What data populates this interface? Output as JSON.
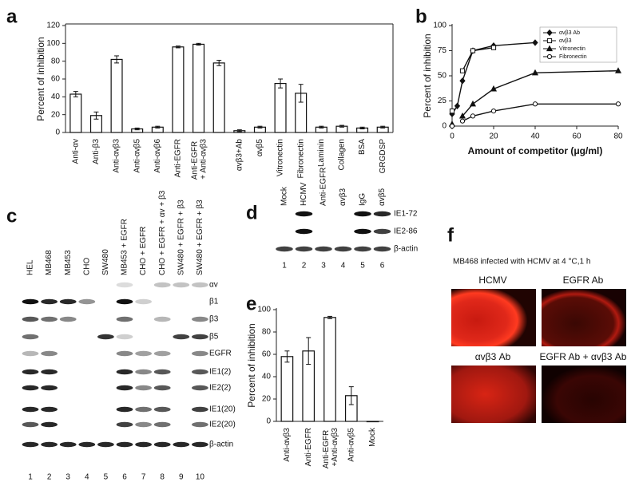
{
  "panel_letters": [
    "a",
    "b",
    "c",
    "d",
    "e",
    "f"
  ],
  "chart_data": [
    {
      "type": "bar",
      "ylabel": "Percent of inhibition",
      "categories": [
        "Anti-αv",
        "Anti-β3",
        "Anti-αvβ3",
        "Anti-αvβ5",
        "Anti-αvβ6",
        "Anti-EGFR",
        "Anti-EGFR + Anti-αvβ3",
        null,
        "αvβ3+Ab",
        "αvβ5",
        "Vitronectin",
        "Fibronectin",
        "Laminin",
        "Collagen",
        "BSA",
        "GRGDSP"
      ],
      "values": [
        43,
        19,
        82,
        4,
        6,
        96,
        99,
        78,
        2,
        6,
        55,
        44,
        6,
        7,
        5,
        6
      ],
      "errors": [
        3,
        4,
        4,
        1,
        1,
        1,
        1,
        3,
        1,
        1,
        5,
        10,
        1,
        1,
        1,
        1
      ],
      "color": "#ffffff",
      "ylim": [
        0,
        120
      ],
      "yticks": [
        0,
        20,
        40,
        60,
        80,
        100,
        120
      ]
    },
    {
      "type": "line",
      "ylabel": "Percent of inhibition",
      "xlabel": "Amount of competitor (μg/ml)",
      "x": [
        0,
        2.5,
        5,
        10,
        20,
        40,
        80
      ],
      "series": [
        {
          "name": "αvβ3 Ab",
          "color": "#111111",
          "marker": "diamond",
          "filled": true,
          "values": [
            12,
            20,
            45,
            75,
            80,
            83,
            null
          ]
        },
        {
          "name": "αvβ3",
          "color": "#111111",
          "marker": "square",
          "filled": false,
          "values": [
            15,
            null,
            55,
            75,
            78,
            null,
            null
          ]
        },
        {
          "name": "Vitronectin",
          "color": "#111111",
          "marker": "triangle",
          "filled": true,
          "values": [
            2,
            null,
            10,
            22,
            37,
            53,
            55
          ]
        },
        {
          "name": "Fibronectin",
          "color": "#111111",
          "marker": "circle",
          "filled": false,
          "values": [
            0,
            null,
            5,
            10,
            15,
            22,
            22
          ]
        }
      ],
      "xlim": [
        0,
        80
      ],
      "xticks": [
        0,
        20,
        40,
        60,
        80
      ],
      "ylim": [
        0,
        100
      ],
      "yticks": [
        0,
        25,
        50,
        75,
        100
      ],
      "legend": "top-right"
    },
    {
      "type": "bar",
      "ylabel": "Percent of inhibition",
      "categories": [
        "Anti-αvβ3",
        "Anti-EGFR",
        "Anti-EGFR +Anti-αvβ3",
        "Anti-αvβ5",
        "Mock"
      ],
      "values": [
        58,
        63,
        93,
        23,
        0
      ],
      "errors": [
        5,
        12,
        1,
        8,
        0
      ],
      "color": "#ffffff",
      "ylim": [
        0,
        100
      ],
      "yticks": [
        0,
        20,
        40,
        60,
        80,
        100
      ]
    }
  ],
  "blot_c": {
    "lanes": [
      "HEL",
      "MB468",
      "MB453",
      "CHO",
      "SW480",
      "MB453 + EGFR",
      "CHO + EGFR",
      "CHO + EGFR + αv + β3",
      "SW480 + EGFR + β3",
      "SW480 + EGFR + β3"
    ],
    "rows": [
      "αv",
      "β1",
      "β3",
      "β5",
      "EGFR",
      "IE1(2)",
      "IE2(2)",
      "IE1(20)",
      "IE2(20)",
      "β-actin"
    ],
    "lane_numbers": [
      1,
      2,
      3,
      4,
      5,
      6,
      7,
      8,
      9,
      10
    ]
  },
  "blot_d": {
    "lanes": [
      "Mock",
      "HCMV",
      "Anti-EGFR",
      "αvβ3",
      "IgG",
      "αvβ5"
    ],
    "rows": [
      "IE1-72",
      "IE2-86",
      "β-actin"
    ],
    "lane_numbers": [
      1,
      2,
      3,
      4,
      5,
      6
    ]
  },
  "micrograph_f": {
    "caption": "MB468 infected with HCMV at 4 °C,1 h",
    "panels": [
      "HCMV",
      "EGFR Ab",
      "αvβ3 Ab",
      "EGFR Ab + αvβ3 Ab"
    ]
  }
}
